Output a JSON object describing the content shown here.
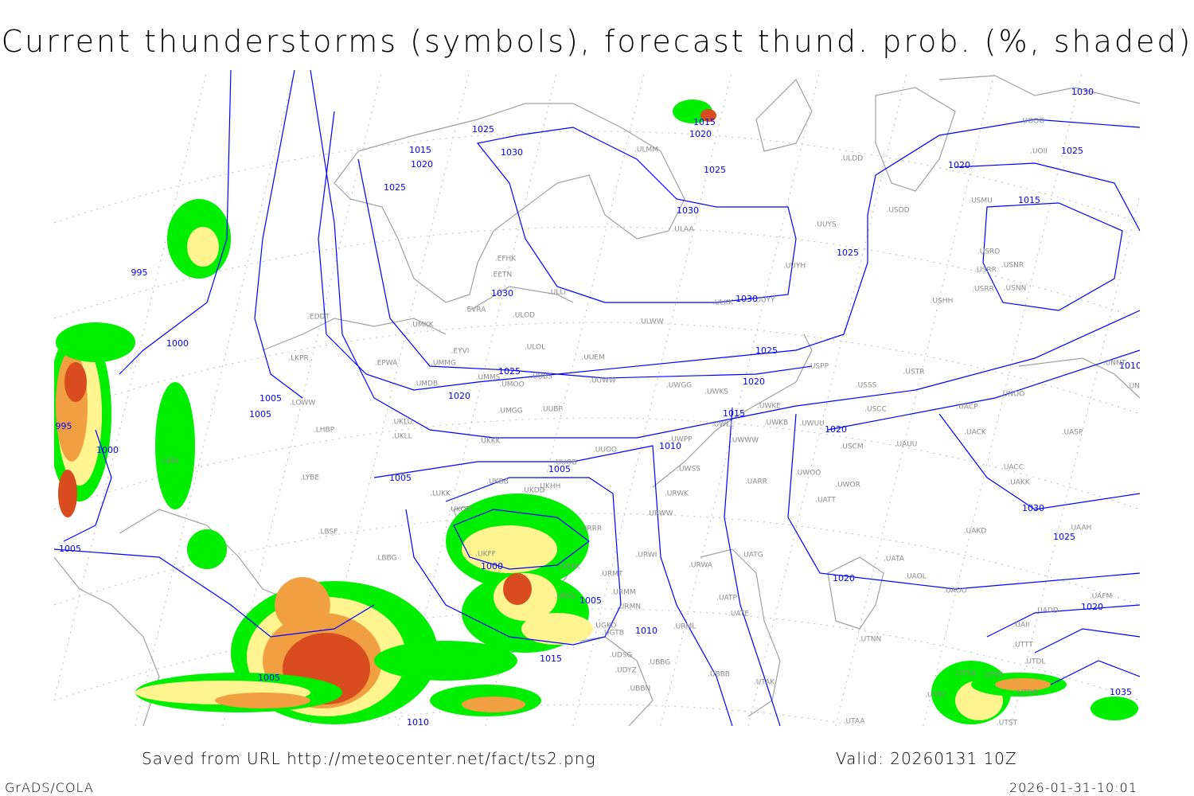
{
  "title": "Current thunderstorms (symbols), forecast thund. prob. (%, shaded)",
  "footer": {
    "source": "Saved from URL http://meteocenter.net/fact/ts2.png",
    "valid": "Valid: 20260131 10Z",
    "software": "GrADS/COLA",
    "timestamp": "2026-01-31-10:01"
  },
  "colors": {
    "isobar": "#0000ff",
    "coastline": "#a0a0a0",
    "prob_low": "#00ee00",
    "prob_mid": "#fff490",
    "prob_high": "#f0a040",
    "prob_max": "#d84c20"
  },
  "isobar_labels": [
    "1025",
    "1015",
    "1020",
    "1030",
    "1025",
    "1015",
    "1020",
    "1025",
    "1030",
    "995",
    "1000",
    "1005",
    "1005",
    "995",
    "1000",
    "1005",
    "1030",
    "1025",
    "1025",
    "1020",
    "1015",
    "1010",
    "1005",
    "1000",
    "1005",
    "1010",
    "1015",
    "1005",
    "1020",
    "1010",
    "1005",
    "1020",
    "1030",
    "1025",
    "1020",
    "1015",
    "1025",
    "1030",
    "1020",
    "1025",
    "1030",
    "1035",
    "1020",
    "1010"
  ],
  "stations": [
    "EFHK",
    "EETN",
    "EVRA",
    "ULLI",
    "ULOD",
    "ULOL",
    "UUEM",
    "ULWW",
    "ULKK",
    "UUYY",
    "UUYH",
    "UUYS",
    "ULAA",
    "ULMM",
    "ULDD",
    "USDD",
    "USMU",
    "USRO",
    "USNR",
    "USRR",
    "USRR",
    "USNN",
    "USHH",
    "USPP",
    "USTR",
    "USSS",
    "USCC",
    "UNOO",
    "UNNT",
    "UNBB",
    "UACP",
    "UACK",
    "UASP",
    "UACC",
    "UAKK",
    "UAKD",
    "UAAH",
    "UATA",
    "UAOL",
    "UAOO",
    "UAFM",
    "UADD",
    "UAII",
    "UTTT",
    "UTDL",
    "UTNN",
    "UTSA",
    "UTSS",
    "UTDD",
    "UTST",
    "UTAA",
    "UTAK",
    "UTAV",
    "UWOO",
    "UWOR",
    "UATT",
    "UARR",
    "UATG",
    "UATE",
    "UATP",
    "URWA",
    "URWI",
    "URMT",
    "URMM",
    "URMN",
    "URRR",
    "URKK",
    "URSS",
    "UGKO",
    "UGTB",
    "UDSG",
    "UBBG",
    "UBBB",
    "UDYZ",
    "UBBN",
    "URML",
    "UUOO",
    "UUOB",
    "UKHH",
    "UKDD",
    "UKBB",
    "UKOO",
    "UKFF",
    "LUKK",
    "UKLL",
    "UKKK",
    "UUBP",
    "UMGG",
    "UMMS",
    "UMOO",
    "UUBS",
    "UUWW",
    "UWGG",
    "UWKS",
    "UWKE",
    "UWKB",
    "UWUU",
    "UWWW",
    "UWPP",
    "UWLL",
    "UWSS",
    "URWW",
    "URWK",
    "USCM",
    "UAUU",
    "UMKK",
    "UMMG",
    "EYVI",
    "EPWA",
    "UMDB",
    "LKPR",
    "LOWW",
    "EDDT",
    "LHBP",
    "UKLU",
    "LIRA",
    "LYBE",
    "LBSF",
    "LBBG",
    "UOOO",
    "UOII"
  ]
}
